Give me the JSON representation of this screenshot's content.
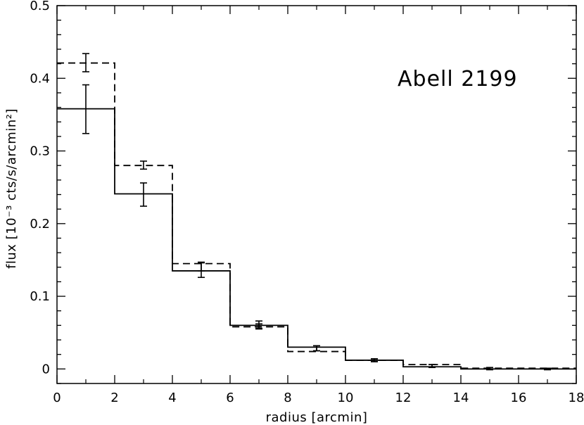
{
  "chart_data": {
    "type": "line",
    "subtype": "step-histogram",
    "title": "",
    "annotation": "Abell  2199",
    "xlabel": "radius [arcmin]",
    "ylabel": "flux [10⁻³ cts/s/arcmin²]",
    "xlim": [
      0,
      18
    ],
    "ylim": [
      -0.02,
      0.5
    ],
    "xticks": [
      0,
      2,
      4,
      6,
      8,
      10,
      12,
      14,
      16,
      18
    ],
    "xtick_labels": [
      "0",
      "2",
      "4",
      "6",
      "8",
      "10",
      "12",
      "14",
      "16",
      "18"
    ],
    "yticks": [
      0,
      0.1,
      0.2,
      0.3,
      0.4,
      0.5
    ],
    "ytick_labels": [
      "0",
      "0.1",
      "0.2",
      "0.3",
      "0.4",
      "0.5"
    ],
    "grid": false,
    "bin_edges": [
      0,
      2,
      4,
      6,
      8,
      10,
      12,
      14,
      16,
      18
    ],
    "x": [
      1,
      3,
      5,
      7,
      9,
      11,
      13,
      15,
      17
    ],
    "series": [
      {
        "style": "solid",
        "values": [
          0.358,
          0.241,
          0.135,
          0.06,
          0.03,
          0.012,
          0.003,
          0.0,
          0.0
        ],
        "errors": [
          {
            "x": 1,
            "low": 0.324,
            "high": 0.391
          },
          {
            "x": 3,
            "low": 0.224,
            "high": 0.256
          },
          {
            "x": 5,
            "low": 0.126,
            "high": 0.146
          },
          {
            "x": 7,
            "low": 0.056,
            "high": 0.066
          },
          {
            "x": 9,
            "low": 0.025,
            "high": 0.032
          },
          {
            "x": 11,
            "low": 0.01,
            "high": 0.014
          },
          {
            "x": 13,
            "low": 0.003,
            "high": 0.006
          },
          {
            "x": 15,
            "low": -0.001,
            "high": 0.002
          },
          {
            "x": 17,
            "low": -0.001,
            "high": 0.001
          }
        ]
      },
      {
        "style": "dashed",
        "values": [
          0.421,
          0.28,
          0.145,
          0.058,
          0.024,
          0.012,
          0.006,
          0.001,
          0.001
        ],
        "errors": [
          {
            "x": 1,
            "low": 0.409,
            "high": 0.434
          },
          {
            "x": 3,
            "low": 0.275,
            "high": 0.286
          },
          {
            "x": 5,
            "low": 0.135,
            "high": 0.147
          },
          {
            "x": 7,
            "low": 0.055,
            "high": 0.062
          },
          {
            "x": 9,
            "low": 0.025,
            "high": 0.032
          },
          {
            "x": 11,
            "low": 0.01,
            "high": 0.014
          },
          {
            "x": 13,
            "low": 0.002,
            "high": 0.006
          },
          {
            "x": 15,
            "low": -0.001,
            "high": 0.002
          },
          {
            "x": 17,
            "low": -0.001,
            "high": 0.001
          }
        ]
      }
    ]
  }
}
